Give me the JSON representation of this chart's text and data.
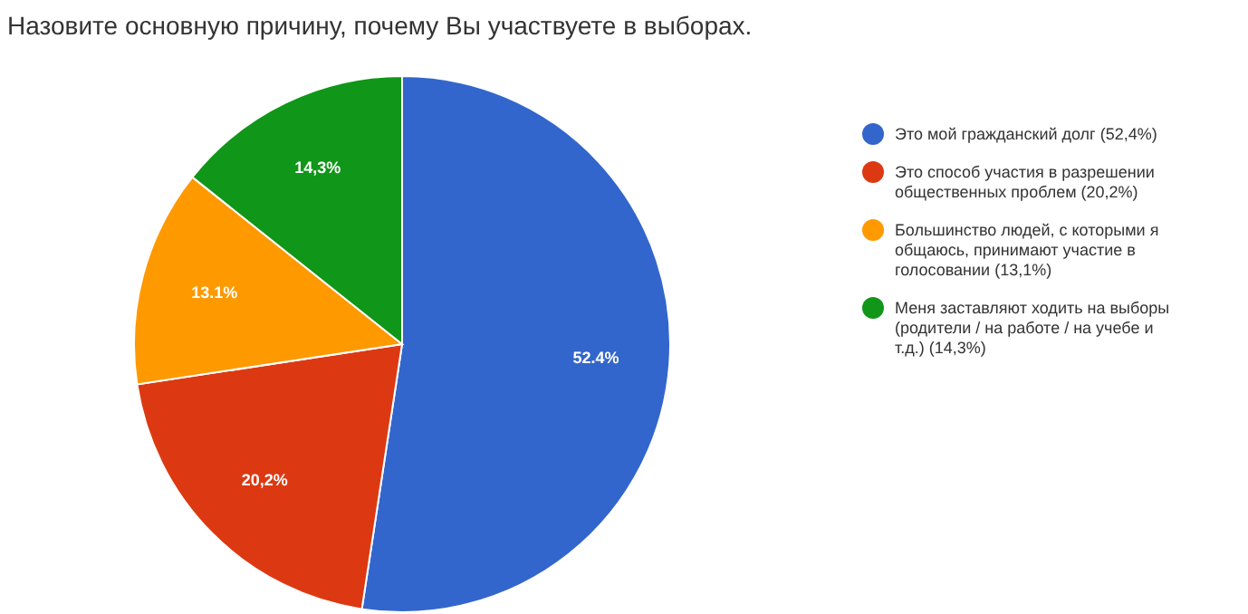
{
  "chart_data": {
    "type": "pie",
    "title": "Назовите основную причину, почему Вы участвуете в выборах.",
    "categories": [
      "Это мой гражданский долг (52,4%)",
      "Это способ участия в разрешении общественных проблем (20,2%)",
      "Большинство людей, с которыми я общаюсь, принимают участие в голосовании (13,1%)",
      "Меня заставляют ходить на выборы (родители / на работе / на учебе и т.д.) (14,3%)"
    ],
    "values": [
      52.4,
      20.2,
      13.1,
      14.3
    ],
    "colors": [
      "#3366cc",
      "#dc3912",
      "#ff9900",
      "#109618"
    ],
    "value_labels": [
      "52.4%",
      "20,2%",
      "13.1%",
      "14,3%"
    ],
    "legend": "right"
  }
}
